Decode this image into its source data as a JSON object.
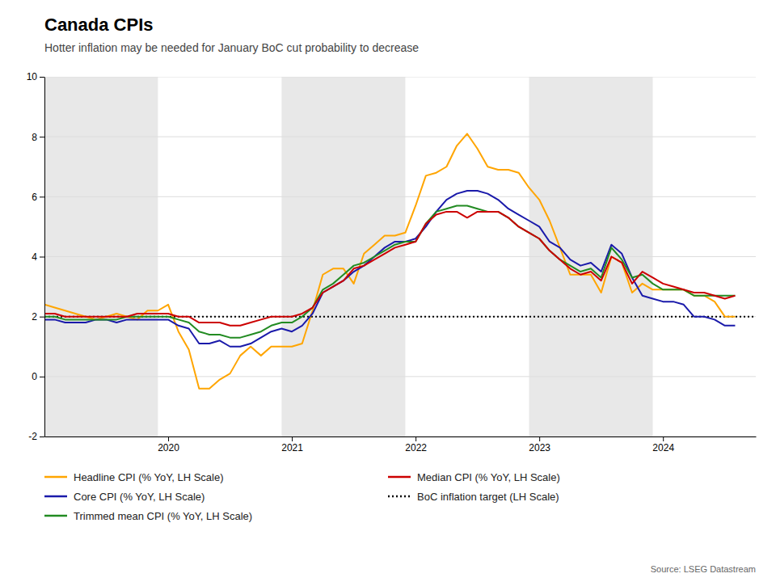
{
  "chart_data": {
    "type": "line",
    "title": "Canada CPIs",
    "subtitle": "Hotter inflation may be needed for January BoC cut probability to decrease",
    "source": "Source: LSEG Datastream",
    "xlim": [
      2019.0,
      2024.75
    ],
    "xticks": [
      2020,
      2021,
      2022,
      2023,
      2024
    ],
    "ylim": [
      -2,
      10
    ],
    "yticks": [
      -2,
      0,
      2,
      4,
      6,
      8,
      10
    ],
    "grid": true,
    "legend": "bottom",
    "shading_bands": {
      "color": "#e8e8e8",
      "ranges": [
        [
          2019.0,
          2019.917
        ],
        [
          2020.917,
          2021.917
        ],
        [
          2022.917,
          2023.917
        ]
      ]
    },
    "target": {
      "name": "BoC inflation target (LH Scale)",
      "value": 2.0,
      "color": "#000000",
      "line_style": "dotted"
    },
    "x": [
      2019.0,
      2019.083,
      2019.167,
      2019.25,
      2019.333,
      2019.417,
      2019.5,
      2019.583,
      2019.667,
      2019.75,
      2019.833,
      2019.917,
      2020.0,
      2020.083,
      2020.167,
      2020.25,
      2020.333,
      2020.417,
      2020.5,
      2020.583,
      2020.667,
      2020.75,
      2020.833,
      2020.917,
      2021.0,
      2021.083,
      2021.167,
      2021.25,
      2021.333,
      2021.417,
      2021.5,
      2021.583,
      2021.667,
      2021.75,
      2021.833,
      2021.917,
      2022.0,
      2022.083,
      2022.167,
      2022.25,
      2022.333,
      2022.417,
      2022.5,
      2022.583,
      2022.667,
      2022.75,
      2022.833,
      2022.917,
      2023.0,
      2023.083,
      2023.167,
      2023.25,
      2023.333,
      2023.417,
      2023.5,
      2023.583,
      2023.667,
      2023.75,
      2023.833,
      2023.917,
      2024.0,
      2024.083,
      2024.167,
      2024.25,
      2024.333,
      2024.417,
      2024.5,
      2024.583
    ],
    "series": [
      {
        "name": "Headline CPI (% YoY, LH Scale)",
        "color": "#FFA500",
        "line_style": "solid",
        "values": [
          2.4,
          2.3,
          2.2,
          2.1,
          2.0,
          1.9,
          2.0,
          2.1,
          2.0,
          1.9,
          2.2,
          2.2,
          2.4,
          1.5,
          0.9,
          -0.4,
          -0.4,
          -0.1,
          0.1,
          0.7,
          1.0,
          0.7,
          1.0,
          1.0,
          1.0,
          1.1,
          2.2,
          3.4,
          3.6,
          3.6,
          3.1,
          4.1,
          4.4,
          4.7,
          4.7,
          4.8,
          5.7,
          6.7,
          6.8,
          7.0,
          7.7,
          8.1,
          7.6,
          7.0,
          6.9,
          6.9,
          6.8,
          6.3,
          5.9,
          5.2,
          4.3,
          3.4,
          3.4,
          3.4,
          2.8,
          4.0,
          3.8,
          2.8,
          3.1,
          2.9,
          2.9,
          2.9,
          2.9,
          2.7,
          2.7,
          2.5,
          2.0,
          2.0
        ]
      },
      {
        "name": "Core CPI (% YoY, LH Scale)",
        "color": "#1a1aaa",
        "line_style": "solid",
        "values": [
          1.9,
          1.9,
          1.8,
          1.8,
          1.8,
          1.9,
          1.9,
          1.8,
          1.9,
          1.9,
          1.9,
          1.9,
          1.9,
          1.7,
          1.6,
          1.1,
          1.1,
          1.2,
          1.0,
          1.0,
          1.1,
          1.3,
          1.5,
          1.6,
          1.5,
          1.7,
          2.1,
          2.8,
          3.0,
          3.2,
          3.5,
          3.7,
          4.0,
          4.3,
          4.5,
          4.5,
          4.6,
          5.0,
          5.5,
          5.9,
          6.1,
          6.2,
          6.2,
          6.1,
          5.9,
          5.6,
          5.4,
          5.2,
          5.0,
          4.5,
          4.3,
          3.9,
          3.7,
          3.8,
          3.5,
          4.4,
          4.1,
          3.3,
          2.7,
          2.6,
          2.5,
          2.5,
          2.4,
          2.0,
          2.0,
          1.9,
          1.7,
          1.7
        ]
      },
      {
        "name": "Trimmed mean CPI (% YoY, LH Scale)",
        "color": "#228B22",
        "line_style": "solid",
        "values": [
          2.0,
          2.0,
          1.9,
          1.9,
          1.9,
          1.9,
          1.9,
          1.9,
          2.0,
          2.0,
          2.0,
          2.0,
          2.0,
          1.9,
          1.8,
          1.5,
          1.4,
          1.4,
          1.3,
          1.3,
          1.4,
          1.5,
          1.7,
          1.8,
          1.8,
          2.0,
          2.3,
          2.9,
          3.1,
          3.4,
          3.7,
          3.8,
          4.0,
          4.2,
          4.4,
          4.5,
          4.5,
          5.1,
          5.5,
          5.6,
          5.7,
          5.7,
          5.6,
          5.5,
          5.5,
          5.3,
          5.0,
          4.8,
          4.6,
          4.2,
          3.9,
          3.7,
          3.5,
          3.6,
          3.3,
          4.3,
          3.9,
          3.3,
          3.4,
          3.1,
          2.9,
          2.9,
          2.9,
          2.7,
          2.7,
          2.7,
          2.7,
          2.7
        ]
      },
      {
        "name": "Median CPI (% YoY, LH Scale)",
        "color": "#CC0000",
        "line_style": "solid",
        "values": [
          2.1,
          2.1,
          2.0,
          2.0,
          2.0,
          2.0,
          2.0,
          2.0,
          2.0,
          2.1,
          2.1,
          2.1,
          2.1,
          2.0,
          2.0,
          1.8,
          1.8,
          1.8,
          1.7,
          1.7,
          1.8,
          1.9,
          2.0,
          2.0,
          2.0,
          2.1,
          2.3,
          2.8,
          3.0,
          3.2,
          3.6,
          3.7,
          3.9,
          4.1,
          4.3,
          4.4,
          4.5,
          5.1,
          5.4,
          5.5,
          5.5,
          5.3,
          5.5,
          5.5,
          5.5,
          5.3,
          5.0,
          4.8,
          4.6,
          4.2,
          3.9,
          3.6,
          3.4,
          3.5,
          3.2,
          4.0,
          3.8,
          3.1,
          3.5,
          3.3,
          3.1,
          3.0,
          2.9,
          2.8,
          2.8,
          2.7,
          2.6,
          2.7
        ]
      }
    ]
  }
}
